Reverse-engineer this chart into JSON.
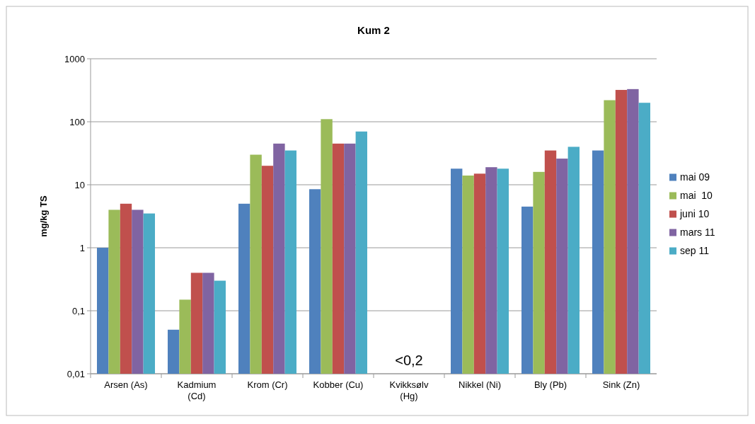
{
  "chart_data": {
    "type": "bar",
    "title": "Kum 2",
    "ylabel": "mg/kg TS",
    "log": true,
    "grid": "y",
    "legend": "right",
    "categories": [
      "Arsen (As)",
      "Kadmium (Cd)",
      "Krom (Cr)",
      "Kobber (Cu)",
      "Kvikksølv (Hg)",
      "Nikkel (Ni)",
      "Bly (Pb)",
      "Sink (Zn)"
    ],
    "ylim": [
      0.01,
      1000
    ],
    "yticks": [
      {
        "value": 0.01,
        "label": "0,01"
      },
      {
        "value": 0.1,
        "label": "0,1"
      },
      1,
      10,
      100,
      1000
    ],
    "series": [
      {
        "name": "mai 09",
        "color": "#4f81bd",
        "values": [
          1,
          0.05,
          5,
          8.5,
          null,
          18,
          4.5,
          35
        ]
      },
      {
        "name": "mai  10",
        "color": "#9bbb59",
        "values": [
          4,
          0.15,
          30,
          110,
          null,
          14,
          16,
          220
        ]
      },
      {
        "name": "juni 10",
        "color": "#c0504d",
        "values": [
          5,
          0.4,
          20,
          45,
          null,
          15,
          35,
          320
        ]
      },
      {
        "name": "mars 11",
        "color": "#8064a2",
        "values": [
          4,
          0.4,
          45,
          45,
          null,
          19,
          26,
          330
        ]
      },
      {
        "name": "sep 11",
        "color": "#4bacc6",
        "values": [
          3.5,
          0.3,
          35,
          70,
          null,
          18,
          40,
          200
        ]
      }
    ],
    "annotations": [
      "<0,2"
    ]
  }
}
